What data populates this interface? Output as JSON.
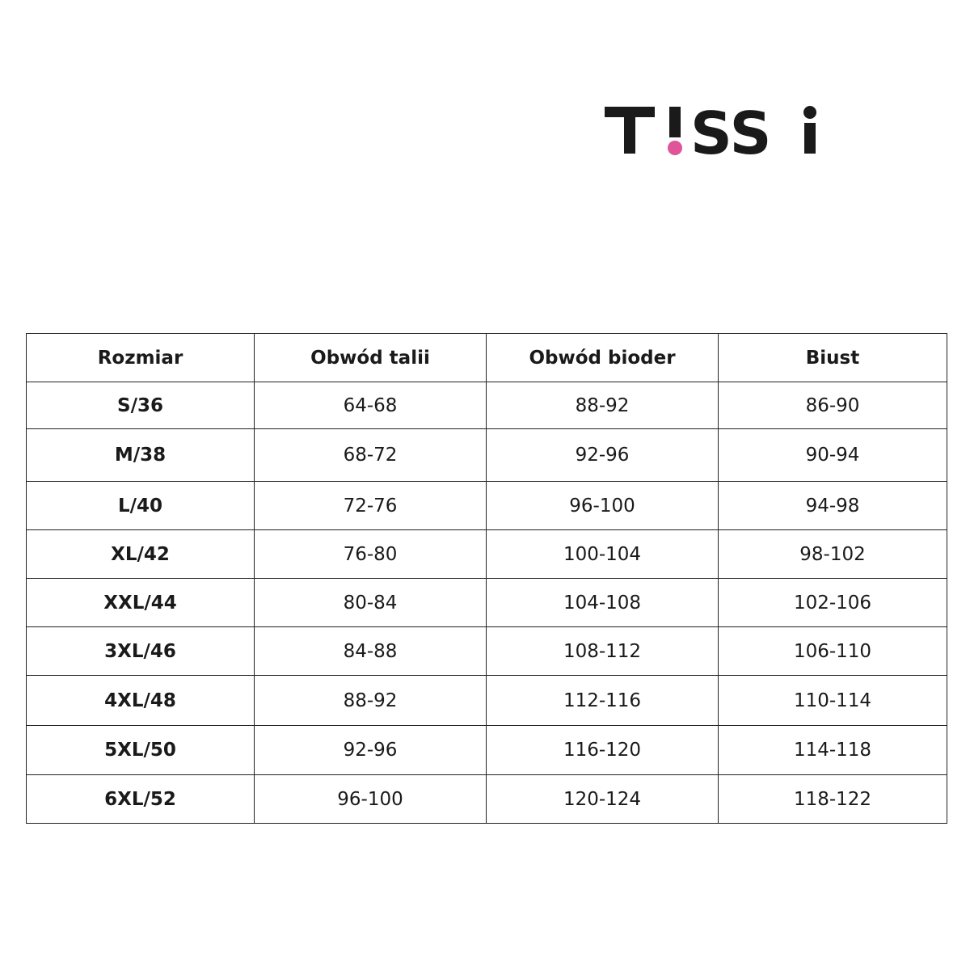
{
  "brand": {
    "logo_text": "T!SSi",
    "accent_color": "#e0559a",
    "text_color": "#1a1a1a"
  },
  "table": {
    "headers": [
      "Rozmiar",
      "Obwód talii",
      "Obwód bioder",
      "Biust"
    ],
    "rows": [
      [
        "S/36",
        "64-68",
        "88-92",
        "86-90"
      ],
      [
        "M/38",
        "68-72",
        "92-96",
        "90-94"
      ],
      [
        "L/40",
        "72-76",
        "96-100",
        "94-98"
      ],
      [
        "XL/42",
        "76-80",
        "100-104",
        "98-102"
      ],
      [
        "XXL/44",
        "80-84",
        "104-108",
        "102-106"
      ],
      [
        "3XL/46",
        "84-88",
        "108-112",
        "106-110"
      ],
      [
        "4XL/48",
        "88-92",
        "112-116",
        "110-114"
      ],
      [
        "5XL/50",
        "92-96",
        "116-120",
        "114-118"
      ],
      [
        "6XL/52",
        "96-100",
        "120-124",
        "118-122"
      ]
    ]
  }
}
